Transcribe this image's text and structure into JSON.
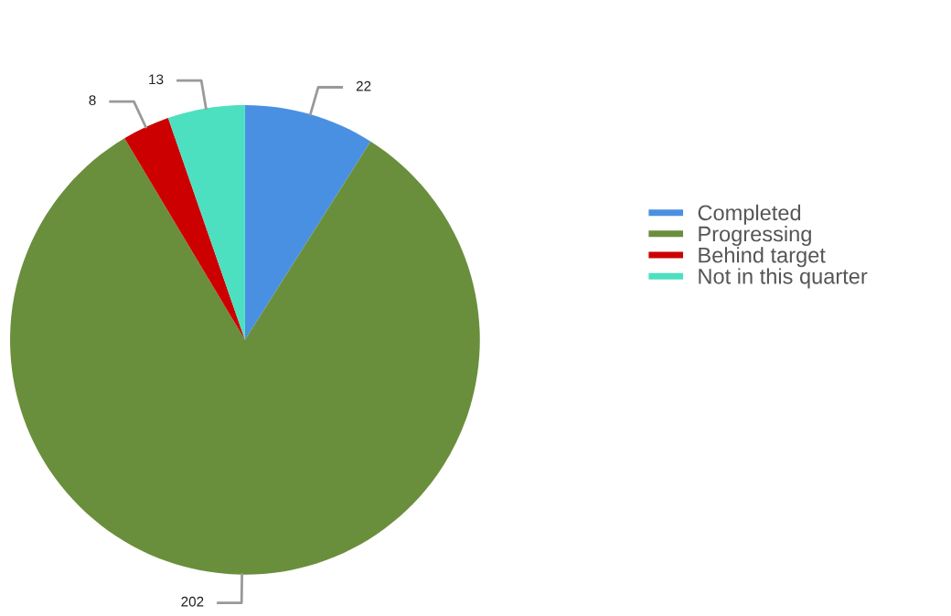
{
  "chart_data": {
    "type": "pie",
    "categories": [
      "Completed",
      "Progressing",
      "Behind target",
      "Not in this quarter"
    ],
    "values": [
      22,
      202,
      8,
      13
    ],
    "colors": [
      "#4a90e2",
      "#6a8f3c",
      "#cc0000",
      "#4de0c0"
    ],
    "data_labels": true,
    "legend": "right"
  }
}
